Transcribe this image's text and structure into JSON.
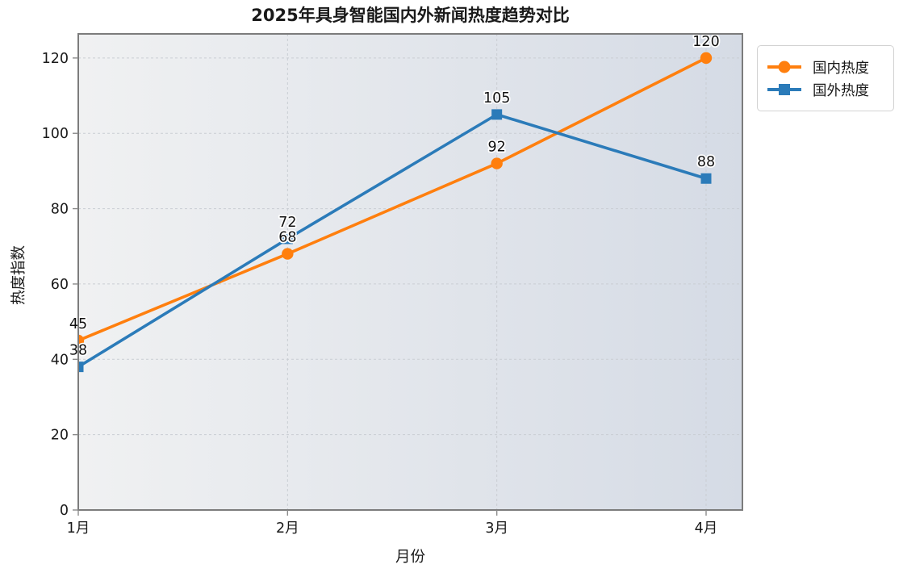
{
  "title": "2025年具身智能国内外新闻热度趋势对比",
  "chart_data": {
    "type": "line",
    "categories": [
      "1月",
      "2月",
      "3月",
      "4月"
    ],
    "series": [
      {
        "name": "国内热度",
        "values": [
          45,
          68,
          92,
          120
        ],
        "color": "#ff7f0e",
        "marker": "circle"
      },
      {
        "name": "国外热度",
        "values": [
          38,
          72,
          105,
          88
        ],
        "color": "#2b7bb9",
        "marker": "square"
      }
    ],
    "title": "2025年具身智能国内外新闻热度趋势对比",
    "xlabel": "月份",
    "ylabel": "热度指数",
    "yticks": [
      0,
      20,
      40,
      60,
      80,
      100,
      120
    ],
    "ylim": [
      0,
      126.4
    ],
    "grid": true,
    "grid_style": "dashed",
    "legend_position": "outside-top-right",
    "show_value_labels": true
  },
  "colors": {
    "plot_bg_start": "#f0f1f2",
    "plot_bg_end": "#d5dbe5",
    "gridline": "#c9cdd3",
    "spine": "#7c7c7c",
    "tick": "#8a8a8a",
    "text": "#1a1a1a"
  }
}
